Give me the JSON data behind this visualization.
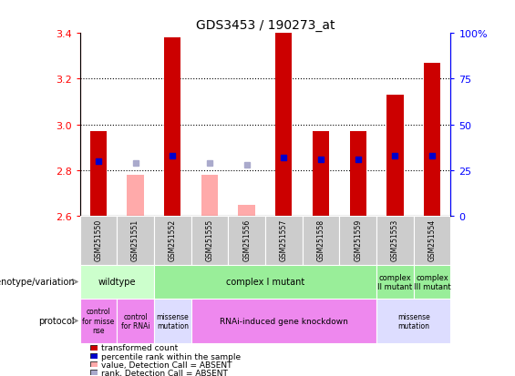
{
  "title": "GDS3453 / 190273_at",
  "samples": [
    "GSM251550",
    "GSM251551",
    "GSM251552",
    "GSM251555",
    "GSM251556",
    "GSM251557",
    "GSM251558",
    "GSM251559",
    "GSM251553",
    "GSM251554"
  ],
  "transformed_count": [
    2.97,
    null,
    3.38,
    null,
    null,
    3.4,
    2.97,
    2.97,
    3.13,
    3.27
  ],
  "transformed_count_absent": [
    null,
    2.78,
    null,
    2.78,
    2.65,
    null,
    null,
    null,
    null,
    null
  ],
  "percentile_rank": [
    30,
    null,
    33,
    null,
    null,
    32,
    31,
    31,
    33,
    33
  ],
  "percentile_rank_absent": [
    null,
    29,
    null,
    29,
    28,
    null,
    null,
    null,
    null,
    null
  ],
  "ylim_left": [
    2.6,
    3.4
  ],
  "ylim_right": [
    0,
    100
  ],
  "yticks_left": [
    2.6,
    2.8,
    3.0,
    3.2,
    3.4
  ],
  "yticks_right": [
    0,
    25,
    50,
    75,
    100
  ],
  "bar_color_red": "#cc0000",
  "bar_color_pink": "#ffaaaa",
  "dot_color_blue": "#0000cc",
  "dot_color_light_blue": "#aaaacc",
  "genotype_row": [
    {
      "label": "wildtype",
      "start": 0,
      "end": 2,
      "color": "#ccffcc"
    },
    {
      "label": "complex I mutant",
      "start": 2,
      "end": 8,
      "color": "#99ee99"
    },
    {
      "label": "complex\nII mutant",
      "start": 8,
      "end": 9,
      "color": "#99ee99"
    },
    {
      "label": "complex\nIII mutant",
      "start": 9,
      "end": 10,
      "color": "#99ee99"
    }
  ],
  "protocol_row": [
    {
      "label": "control\nfor misse\nnse",
      "start": 0,
      "end": 1,
      "color": "#ee88ee"
    },
    {
      "label": "control\nfor RNAi",
      "start": 1,
      "end": 2,
      "color": "#ee88ee"
    },
    {
      "label": "missense\nmutation",
      "start": 2,
      "end": 3,
      "color": "#ddddff"
    },
    {
      "label": "RNAi-induced gene knockdown",
      "start": 3,
      "end": 8,
      "color": "#ee88ee"
    },
    {
      "label": "missense\nmutation",
      "start": 8,
      "end": 10,
      "color": "#ddddff"
    }
  ],
  "legend_items": [
    {
      "label": "transformed count",
      "color": "#cc0000"
    },
    {
      "label": "percentile rank within the sample",
      "color": "#0000cc"
    },
    {
      "label": "value, Detection Call = ABSENT",
      "color": "#ffaaaa"
    },
    {
      "label": "rank, Detection Call = ABSENT",
      "color": "#aaaacc"
    }
  ]
}
